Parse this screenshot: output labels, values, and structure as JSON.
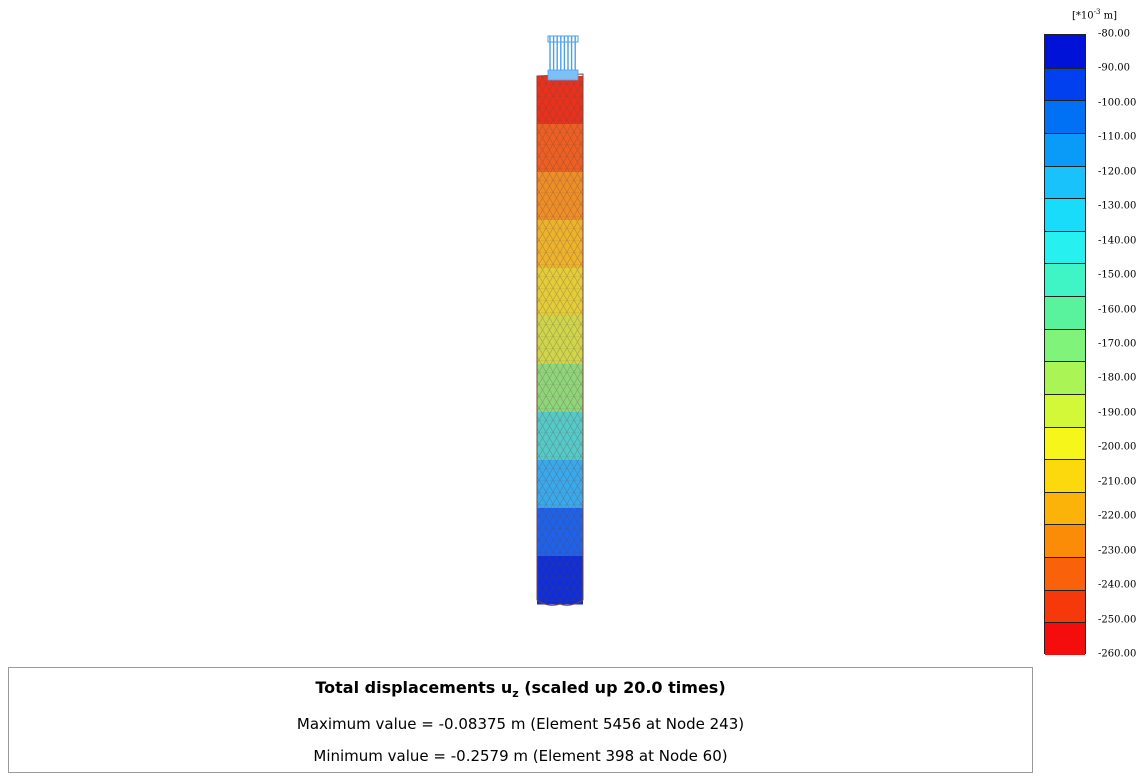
{
  "window": {
    "title": ""
  },
  "result": {
    "title_prefix": "Total displacements u",
    "title_subscript": "z",
    "title_suffix": " (scaled up 20.0 times)",
    "max_line": "Maximum value = -0.08375 m (Element 5456 at Node 243)",
    "min_line": "Minimum value = -0.2579 m (Element 398 at Node 60)"
  },
  "legend": {
    "unit_prefix": "[*10",
    "unit_exponent": "-3",
    "unit_suffix": " m]",
    "ticks": [
      "-80.00",
      "-90.00",
      "-100.00",
      "-110.00",
      "-120.00",
      "-130.00",
      "-140.00",
      "-150.00",
      "-160.00",
      "-170.00",
      "-180.00",
      "-190.00",
      "-200.00",
      "-210.00",
      "-220.00",
      "-230.00",
      "-240.00",
      "-250.00",
      "-260.00"
    ],
    "colors": [
      "#0012d8",
      "#0040ee",
      "#0070f5",
      "#0a9af8",
      "#1ac2fb",
      "#19dcfb",
      "#26f0f0",
      "#3ff5c5",
      "#58f39c",
      "#80f37a",
      "#aaf456",
      "#d2f838",
      "#f6f61b",
      "#fbd90d",
      "#fcb309",
      "#fb8c08",
      "#f9620a",
      "#f6390b",
      "#f50c0c"
    ]
  },
  "model": {
    "band_colors": [
      "#e9321d",
      "#ed5f22",
      "#ee8e27",
      "#edb32d",
      "#e3cd3a",
      "#cfd54c",
      "#8fd67a",
      "#55cac8",
      "#3aa9ec",
      "#1f62ea",
      "#0f2ed8"
    ]
  }
}
